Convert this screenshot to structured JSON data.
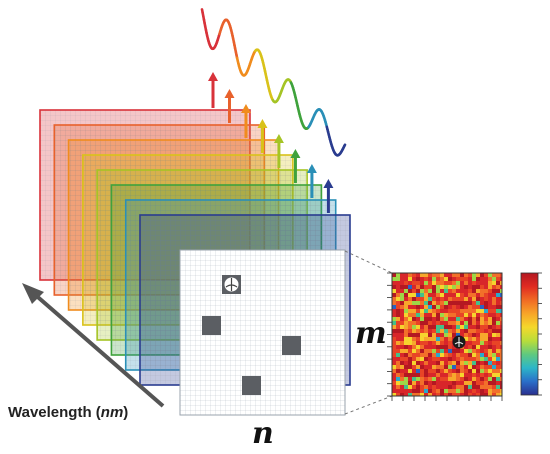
{
  "labels": {
    "wavelength_text": "Wavelength (",
    "wavelength_unit": "nm",
    "wavelength_close": ")",
    "m_axis": "m",
    "n_axis": "n"
  },
  "bands": [
    {
      "name": "band-red",
      "color": "#d8323a"
    },
    {
      "name": "band-orange-red",
      "color": "#e8612c"
    },
    {
      "name": "band-orange",
      "color": "#f08c1e"
    },
    {
      "name": "band-yellow",
      "color": "#d9c21a"
    },
    {
      "name": "band-yellow-green",
      "color": "#a5c425"
    },
    {
      "name": "band-green",
      "color": "#3fa23c"
    },
    {
      "name": "band-teal",
      "color": "#2a8fb7"
    },
    {
      "name": "band-blue",
      "color": "#2a3c8f"
    }
  ],
  "colorbar": [
    "#b41822",
    "#e02b22",
    "#f06a24",
    "#f7a528",
    "#f5d82b",
    "#b9dd3a",
    "#5fc97f",
    "#2cb6c8",
    "#2a6fc9",
    "#2a2f8f"
  ]
}
